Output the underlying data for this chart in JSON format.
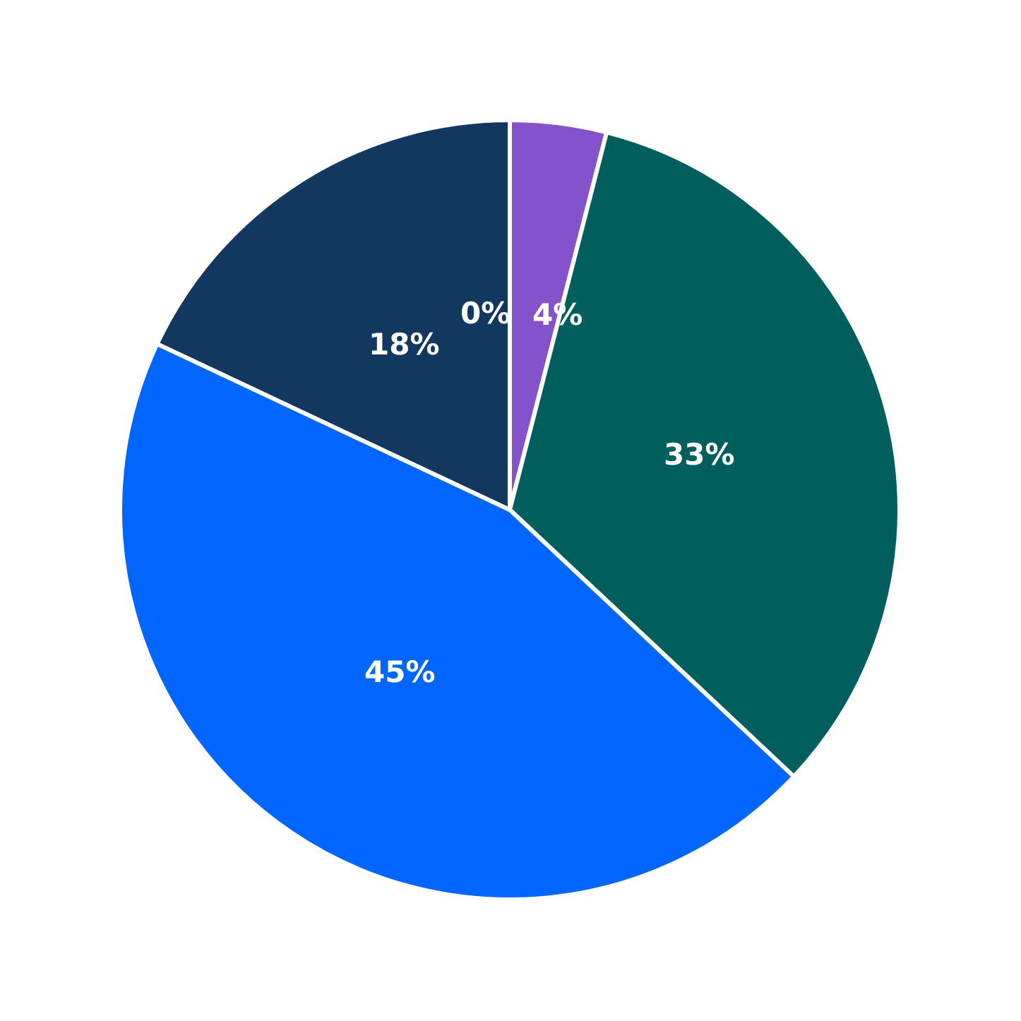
{
  "chart_data": {
    "type": "pie",
    "categories": [
      null,
      null,
      null,
      null,
      null
    ],
    "values": [
      0,
      4,
      33,
      45,
      18
    ],
    "colors": [
      "#c9b6ea",
      "#8453cb",
      "#005f5d",
      "#0066ff",
      "#13385f"
    ],
    "value_labels": [
      "0%",
      "4%",
      "33%",
      "45%",
      "18%"
    ],
    "legend": false
  }
}
